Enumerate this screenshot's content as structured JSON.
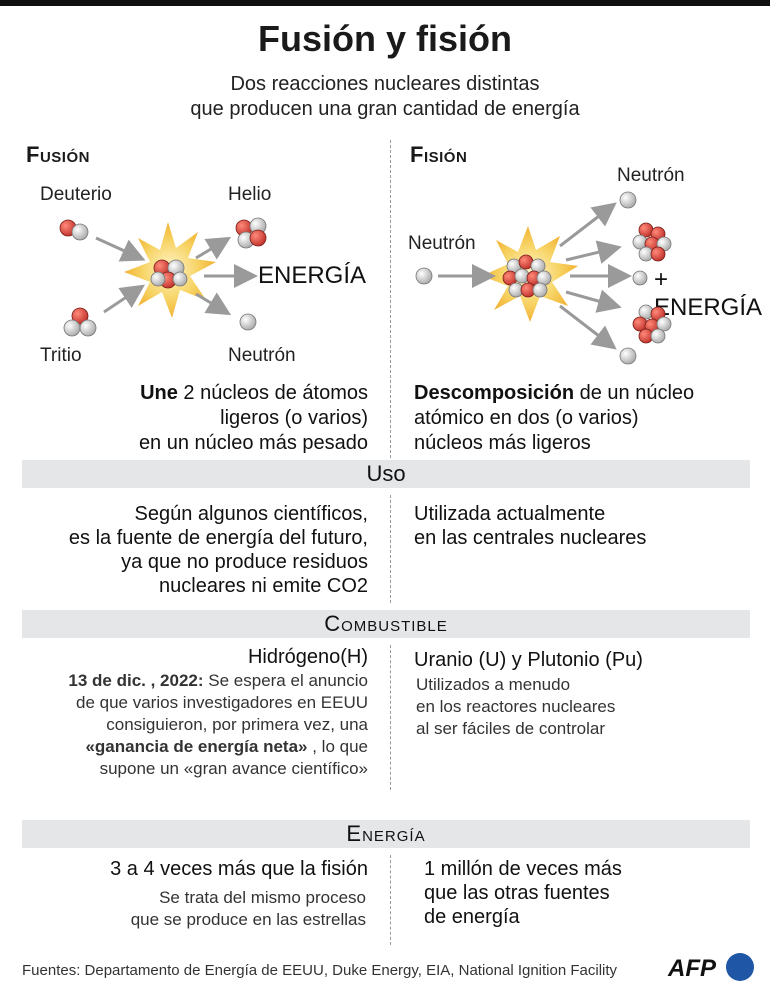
{
  "title": "Fusión y fisión",
  "subtitle_line1": "Dos reacciones nucleares distintas",
  "subtitle_line2": "que producen una gran cantidad de energía",
  "fusion": {
    "heading": "Fusión",
    "deuterio": "Deuterio",
    "tritio": "Tritio",
    "helio": "Helio",
    "neutron": "Neutrón",
    "energia": "ENERGÍA",
    "desc_bold": "Une",
    "desc_line1": " 2 núcleos de átomos",
    "desc_line2": "ligeros (o varios)",
    "desc_line3": "en un núcleo más pesado"
  },
  "fision": {
    "heading": "Fisión",
    "neutron_in": "Neutrón",
    "neutron_out": "Neutrón",
    "energia": "+ ENERGÍA",
    "desc_bold": "Descomposición",
    "desc_line1": " de un núcleo",
    "desc_line2": "atómico en dos (o varios)",
    "desc_line3": "núcleos más ligeros"
  },
  "uso": {
    "label": "Uso",
    "fusion_lines": [
      "Según algunos científicos,",
      "es la fuente de energía del futuro,",
      "ya que no produce residuos",
      "nucleares ni emite CO2"
    ],
    "fision_lines": [
      "Utilizada actualmente",
      "en las centrales nucleares"
    ]
  },
  "combustible": {
    "label": "Combustible",
    "fusion_fuel": "Hidrógeno(H)",
    "fusion_note_date": "13 de dic. , 2022:",
    "fusion_note_1": " Se espera el anuncio",
    "fusion_note_2": "de que varios investigadores en EEUU",
    "fusion_note_3": "consiguieron, por primera vez, una",
    "fusion_note_4_bold": "«ganancia de energía neta»",
    "fusion_note_4": " , lo que",
    "fusion_note_5": "supone un «gran avance científico»",
    "fision_fuel": "Uranio (U) y Plutonio (Pu)",
    "fision_lines": [
      "Utilizados a menudo",
      "en los reactores nucleares",
      "al ser fáciles de controlar"
    ]
  },
  "energia": {
    "label": "Energía",
    "fusion_main": "3 a 4 veces más que la fisión",
    "fusion_sub_1": "Se trata del mismo proceso",
    "fusion_sub_2": "que se produce en las estrellas",
    "fision_lines": [
      "1 millón de veces más",
      "que las otras fuentes",
      "de energía"
    ]
  },
  "footer": "Fuentes: Departamento de Energía de EEUU, Duke Energy, EIA, National Ignition Facility",
  "logo": "AFP",
  "colors": {
    "proton": "#d9453a",
    "neutron": "#d8d8d8",
    "band": "#e4e6e8",
    "flash": "#f7c64a",
    "afp_blue": "#1f56a5"
  }
}
